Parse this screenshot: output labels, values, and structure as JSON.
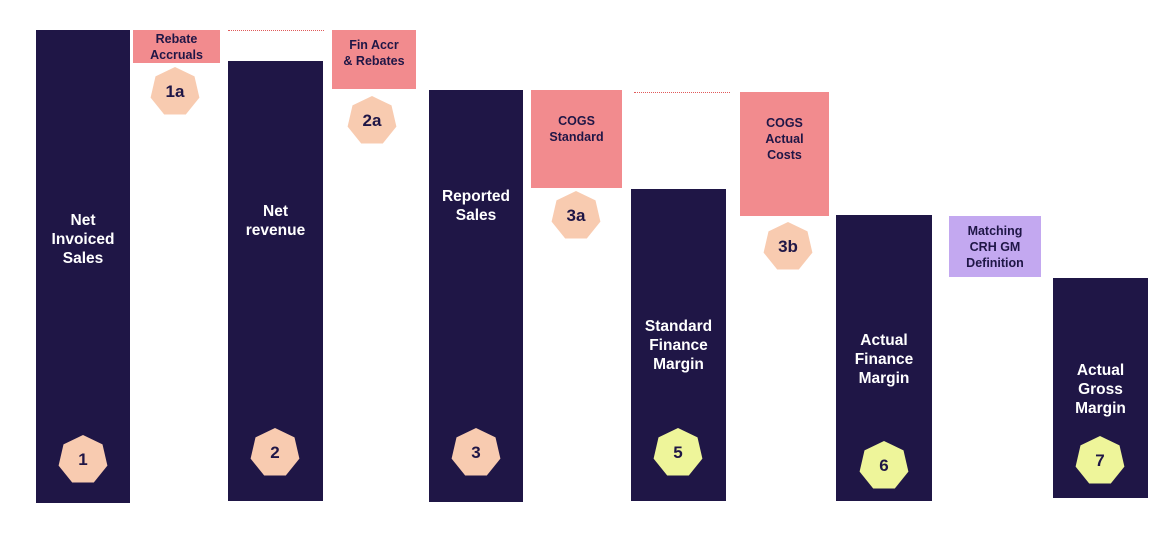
{
  "colors": {
    "bar": "#1f1646",
    "pink_box": "#f28b8e",
    "lilac_box": "#c3a8f0",
    "badge_peach": "#f8cbb0",
    "badge_yellow": "#eef59a",
    "connector": "#e05a5a"
  },
  "bars": [
    {
      "id": "net-invoiced-sales",
      "label": "Net\nInvoiced\nSales",
      "badge": "1"
    },
    {
      "id": "net-revenue",
      "label": "Net\nrevenue",
      "badge": "2"
    },
    {
      "id": "reported-sales",
      "label": "Reported\nSales",
      "badge": "3"
    },
    {
      "id": "standard-finance-margin",
      "label": "Standard\nFinance\nMargin",
      "badge": "5"
    },
    {
      "id": "actual-finance-margin",
      "label": "Actual\nFinance\nMargin",
      "badge": "6"
    },
    {
      "id": "actual-gross-margin",
      "label": "Actual\nGross\nMargin",
      "badge": "7"
    }
  ],
  "adjustments": [
    {
      "id": "rebate-accruals",
      "label": "Rebate\nAccruals",
      "badge": "1a"
    },
    {
      "id": "fin-accr-rebates",
      "label": "Fin Accr\n& Rebates",
      "badge": "2a"
    },
    {
      "id": "cogs-standard",
      "label": "COGS\nStandard",
      "badge": "3a"
    },
    {
      "id": "cogs-actual-costs",
      "label": "COGS\nActual\nCosts",
      "badge": "3b"
    },
    {
      "id": "matching-crh-gm",
      "label": "Matching\nCRH GM\nDefinition"
    }
  ]
}
